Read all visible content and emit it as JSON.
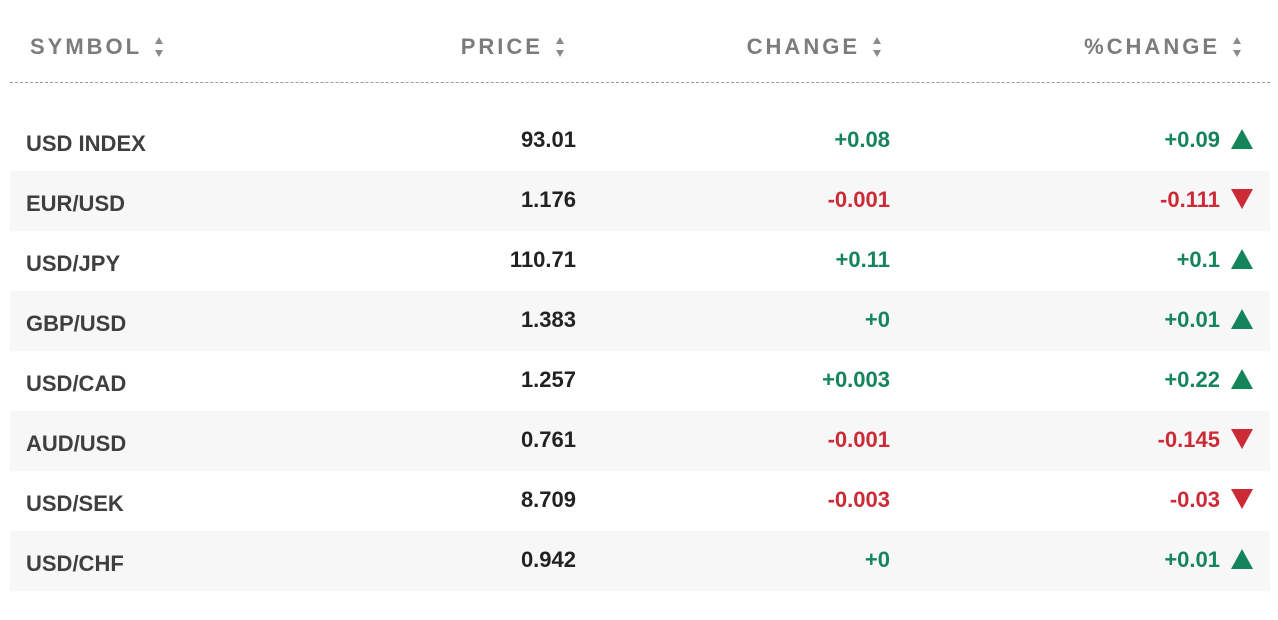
{
  "columns": [
    {
      "key": "symbol",
      "label": "SYMBOL"
    },
    {
      "key": "price",
      "label": "PRICE"
    },
    {
      "key": "change",
      "label": "CHANGE"
    },
    {
      "key": "pct_change",
      "label": "%CHANGE"
    }
  ],
  "colors": {
    "positive": "#14845a",
    "negative": "#cc2a36",
    "header": "#7c7c7c",
    "row_alt": "#f7f7f7"
  },
  "rows": [
    {
      "symbol": "USD INDEX",
      "price": "93.01",
      "change": "+0.08",
      "pct_change": "+0.09",
      "direction": "up"
    },
    {
      "symbol": "EUR/USD",
      "price": "1.176",
      "change": "-0.001",
      "pct_change": "-0.111",
      "direction": "down"
    },
    {
      "symbol": "USD/JPY",
      "price": "110.71",
      "change": "+0.11",
      "pct_change": "+0.1",
      "direction": "up"
    },
    {
      "symbol": "GBP/USD",
      "price": "1.383",
      "change": "+0",
      "pct_change": "+0.01",
      "direction": "up"
    },
    {
      "symbol": "USD/CAD",
      "price": "1.257",
      "change": "+0.003",
      "pct_change": "+0.22",
      "direction": "up"
    },
    {
      "symbol": "AUD/USD",
      "price": "0.761",
      "change": "-0.001",
      "pct_change": "-0.145",
      "direction": "down"
    },
    {
      "symbol": "USD/SEK",
      "price": "8.709",
      "change": "-0.003",
      "pct_change": "-0.03",
      "direction": "down"
    },
    {
      "symbol": "USD/CHF",
      "price": "0.942",
      "change": "+0",
      "pct_change": "+0.01",
      "direction": "up"
    }
  ]
}
